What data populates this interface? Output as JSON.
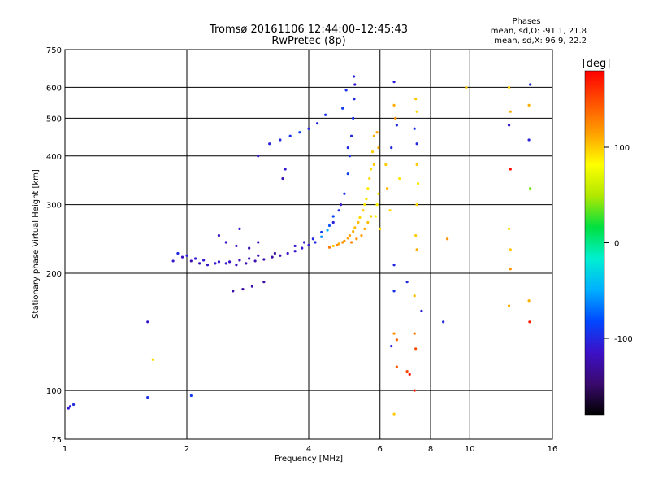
{
  "chart_data": {
    "type": "scatter",
    "title": "Tromsø 20161106 12:44:00–12:45:43",
    "subtitle": "RwPretec (8p)",
    "xlabel": "Frequency [MHz]",
    "ylabel": "Stationary phase Virtual Height [km]",
    "x_scale": "log",
    "y_scale": "log",
    "xlim": [
      1,
      16
    ],
    "ylim": [
      75,
      750
    ],
    "x_ticks": [
      1,
      2,
      4,
      6,
      8,
      10,
      16
    ],
    "x_gridlines": [
      2,
      4,
      6,
      8,
      10
    ],
    "y_ticks": [
      75,
      100,
      200,
      300,
      400,
      500,
      600,
      750
    ],
    "y_gridlines": [
      100,
      200,
      300,
      400,
      500,
      600
    ],
    "grid": true,
    "stats": {
      "heading": "Phases",
      "line_o": "mean, sd,O: -91.1, 21.8",
      "line_x": "mean, sd,X:  96.9, 22.2"
    },
    "colorbar": {
      "label": "[deg]",
      "range": [
        -180,
        180
      ],
      "ticks": [
        100,
        0,
        -100
      ],
      "colors": [
        "#000000",
        "#3a0a6e",
        "#3c10c8",
        "#0048ff",
        "#00b0ff",
        "#00f0d0",
        "#00e040",
        "#b0e800",
        "#ffff00",
        "#ffa000",
        "#ff5000",
        "#ff0000"
      ]
    },
    "series": [
      {
        "points": [
          [
            1.85,
            215
          ],
          [
            1.95,
            220
          ],
          [
            2.05,
            215
          ],
          [
            2.15,
            212
          ],
          [
            2.25,
            210
          ],
          [
            2.35,
            212
          ],
          [
            2.5,
            212
          ],
          [
            2.65,
            210
          ],
          [
            2.8,
            212
          ],
          [
            2.95,
            215
          ],
          [
            3.1,
            217
          ],
          [
            3.25,
            220
          ],
          [
            3.4,
            222
          ],
          [
            3.55,
            225
          ],
          [
            3.7,
            228
          ],
          [
            3.85,
            232
          ],
          [
            4.0,
            236
          ],
          [
            4.15,
            240
          ],
          [
            4.3,
            248
          ],
          [
            4.45,
            258
          ],
          [
            4.6,
            270
          ],
          [
            4.75,
            290
          ],
          [
            4.9,
            320
          ],
          [
            5.0,
            360
          ],
          [
            5.05,
            400
          ],
          [
            5.1,
            450
          ],
          [
            5.15,
            500
          ],
          [
            5.18,
            560
          ],
          [
            5.2,
            610
          ],
          [
            5.17,
            640
          ],
          [
            4.95,
            590
          ],
          [
            4.85,
            530
          ],
          [
            5.0,
            420
          ],
          [
            4.8,
            300
          ],
          [
            4.6,
            280
          ],
          [
            4.5,
            265
          ],
          [
            4.3,
            255
          ],
          [
            4.1,
            245
          ],
          [
            3.9,
            240
          ],
          [
            3.7,
            235
          ],
          [
            3.3,
            225
          ],
          [
            3.0,
            222
          ],
          [
            2.85,
            218
          ],
          [
            2.7,
            216
          ],
          [
            2.55,
            214
          ],
          [
            2.4,
            214
          ],
          [
            2.2,
            216
          ],
          [
            2.1,
            218
          ],
          [
            2.0,
            222
          ],
          [
            1.9,
            225
          ],
          [
            3.2,
            430
          ],
          [
            3.4,
            440
          ],
          [
            3.6,
            450
          ],
          [
            3.8,
            460
          ],
          [
            4.0,
            470
          ],
          [
            4.2,
            485
          ],
          [
            4.4,
            510
          ],
          [
            3.0,
            400
          ],
          [
            3.5,
            370
          ],
          [
            3.45,
            350
          ],
          [
            2.6,
            180
          ],
          [
            2.75,
            182
          ],
          [
            2.9,
            185
          ],
          [
            3.1,
            190
          ],
          [
            2.65,
            235
          ],
          [
            2.85,
            232
          ],
          [
            3.0,
            240
          ],
          [
            2.5,
            240
          ],
          [
            2.4,
            250
          ],
          [
            2.7,
            260
          ],
          [
            6.5,
            620
          ],
          [
            6.6,
            480
          ],
          [
            7.3,
            470
          ],
          [
            7.4,
            430
          ],
          [
            12.5,
            480
          ],
          [
            14.0,
            440
          ],
          [
            14.1,
            610
          ],
          [
            6.4,
            420
          ],
          [
            7.0,
            190
          ],
          [
            7.6,
            160
          ],
          [
            8.6,
            150
          ],
          [
            6.5,
            180
          ],
          [
            6.5,
            210
          ],
          [
            6.4,
            130
          ],
          [
            1.6,
            150
          ],
          [
            1.6,
            96
          ],
          [
            2.05,
            97
          ],
          [
            1.05,
            92
          ],
          [
            1.03,
            91
          ],
          [
            1.02,
            90
          ]
        ],
        "phase": [
          -110,
          -115,
          -120,
          -118,
          -112,
          -110,
          -108,
          -115,
          -120,
          -122,
          -125,
          -128,
          -120,
          -115,
          -112,
          -110,
          -108,
          -100,
          -60,
          -50,
          -105,
          -100,
          -95,
          -90,
          -95,
          -100,
          -95,
          -100,
          -110,
          -105,
          -95,
          -90,
          -100,
          -110,
          -85,
          -80,
          -90,
          -100,
          -105,
          -110,
          -130,
          -125,
          -120,
          -118,
          -115,
          -112,
          -110,
          -108,
          -105,
          -100,
          -105,
          -100,
          -95,
          -90,
          -100,
          -100,
          -95,
          -110,
          -110,
          -120,
          -125,
          -128,
          -125,
          -130,
          -120,
          -118,
          -125,
          -115,
          -118,
          -112,
          -105,
          -100,
          -95,
          -100,
          -110,
          -105,
          -100,
          -100,
          -100,
          -105,
          -100,
          -95,
          -100,
          -105,
          -110,
          -95,
          -90,
          -100,
          -105,
          -110
        ]
      },
      {
        "points": [
          [
            4.6,
            235
          ],
          [
            4.75,
            238
          ],
          [
            4.9,
            242
          ],
          [
            5.05,
            250
          ],
          [
            5.2,
            262
          ],
          [
            5.35,
            278
          ],
          [
            5.5,
            300
          ],
          [
            5.6,
            330
          ],
          [
            5.7,
            370
          ],
          [
            5.75,
            410
          ],
          [
            5.8,
            450
          ],
          [
            5.65,
            350
          ],
          [
            5.55,
            310
          ],
          [
            5.45,
            290
          ],
          [
            5.3,
            270
          ],
          [
            5.15,
            256
          ],
          [
            5.0,
            246
          ],
          [
            4.85,
            240
          ],
          [
            4.7,
            236
          ],
          [
            4.5,
            233
          ],
          [
            5.9,
            300
          ],
          [
            5.85,
            280
          ],
          [
            5.95,
            320
          ],
          [
            6.0,
            260
          ],
          [
            5.7,
            280
          ],
          [
            5.6,
            270
          ],
          [
            5.5,
            260
          ],
          [
            5.4,
            250
          ],
          [
            5.25,
            245
          ],
          [
            5.1,
            240
          ],
          [
            6.5,
            540
          ],
          [
            6.55,
            500
          ],
          [
            7.35,
            560
          ],
          [
            7.4,
            520
          ],
          [
            7.4,
            380
          ],
          [
            7.45,
            340
          ],
          [
            7.4,
            300
          ],
          [
            7.35,
            250
          ],
          [
            7.4,
            230
          ],
          [
            6.7,
            350
          ],
          [
            6.2,
            380
          ],
          [
            6.25,
            330
          ],
          [
            6.35,
            290
          ],
          [
            12.5,
            600
          ],
          [
            12.6,
            520
          ],
          [
            12.5,
            260
          ],
          [
            12.6,
            230
          ],
          [
            12.6,
            205
          ],
          [
            12.5,
            165
          ],
          [
            14.0,
            540
          ],
          [
            14.1,
            330
          ],
          [
            14.0,
            170
          ],
          [
            7.3,
            175
          ],
          [
            6.5,
            140
          ],
          [
            7.3,
            140
          ],
          [
            6.6,
            135
          ],
          [
            7.35,
            128
          ],
          [
            6.5,
            87
          ],
          [
            8.8,
            245
          ],
          [
            9.8,
            600
          ],
          [
            1.65,
            120
          ],
          [
            7.3,
            100
          ],
          [
            7.1,
            110
          ],
          [
            14.05,
            150
          ],
          [
            12.6,
            370
          ],
          [
            7.0,
            112
          ],
          [
            6.6,
            115
          ],
          [
            5.95,
            420
          ],
          [
            5.9,
            460
          ],
          [
            5.8,
            380
          ]
        ],
        "phase": [
          100,
          110,
          120,
          115,
          105,
          95,
          90,
          88,
          92,
          100,
          110,
          95,
          90,
          100,
          105,
          110,
          115,
          120,
          125,
          130,
          85,
          80,
          90,
          95,
          100,
          105,
          110,
          115,
          120,
          125,
          110,
          120,
          100,
          95,
          100,
          90,
          95,
          100,
          110,
          90,
          100,
          105,
          95,
          100,
          110,
          95,
          100,
          120,
          110,
          110,
          40,
          110,
          105,
          120,
          130,
          140,
          150,
          100,
          120,
          100,
          95,
          165,
          175,
          170,
          175,
          150,
          145,
          110,
          115,
          100
        ]
      }
    ]
  }
}
